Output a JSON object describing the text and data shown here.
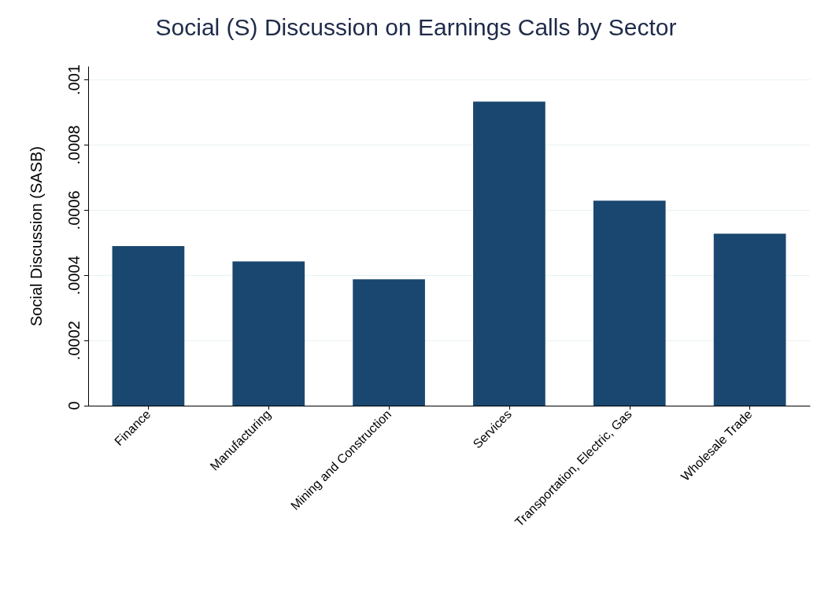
{
  "chart_data": {
    "type": "bar",
    "title": "Social (S) Discussion on Earnings Calls by Sector",
    "ylabel": "Social Discussion (SASB)",
    "categories": [
      "Finance",
      "Manufacturing",
      "Mining and Construction",
      "Services",
      "Transportation, Electric, Gas",
      "Wholesale Trade"
    ],
    "values": [
      0.00049,
      0.000443,
      0.000388,
      0.000933,
      0.000629,
      0.000528
    ],
    "color": "#1a476f",
    "ylim": [
      0,
      0.00104
    ],
    "yticks": [
      {
        "value": 0,
        "label": "0"
      },
      {
        "value": 0.0002,
        "label": ".0002"
      },
      {
        "value": 0.0004,
        "label": ".0004"
      },
      {
        "value": 0.0006,
        "label": ".0006"
      },
      {
        "value": 0.0008,
        "label": ".0008"
      },
      {
        "value": 0.001,
        "label": ".001"
      }
    ],
    "grid": "y"
  }
}
